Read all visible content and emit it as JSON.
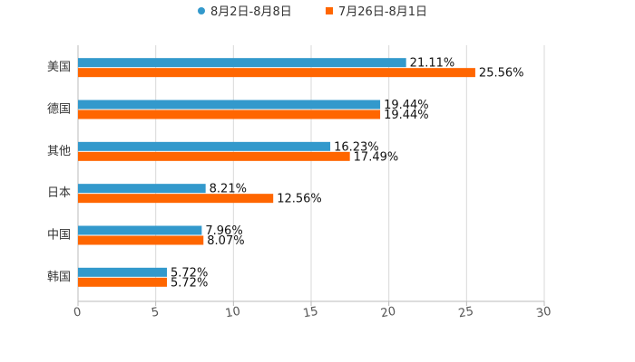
{
  "chart_data": {
    "type": "bar",
    "orientation": "horizontal",
    "categories": [
      "美国",
      "德国",
      "其他",
      "日本",
      "中国",
      "韩国"
    ],
    "series": [
      {
        "name": "8月2日-8月8日",
        "color": "#3399cc",
        "values": [
          21.11,
          19.44,
          16.23,
          8.21,
          7.96,
          5.72
        ],
        "labels": [
          "21.11%",
          "19.44%",
          "16.23%",
          "8.21%",
          "7.96%",
          "5.72%"
        ]
      },
      {
        "name": "7月26日-8月1日",
        "color": "#ff6600",
        "values": [
          25.56,
          19.44,
          17.49,
          12.56,
          8.07,
          5.72
        ],
        "labels": [
          "25.56%",
          "19.44%",
          "17.49%",
          "12.56%",
          "8.07%",
          "5.72%"
        ]
      }
    ],
    "xlim": [
      0,
      30
    ],
    "xticks": [
      0,
      5,
      10,
      15,
      20,
      25,
      30
    ],
    "xtick_labels": [
      "0",
      "5",
      "10",
      "15",
      "20",
      "25",
      "30"
    ],
    "grid": true,
    "legend_position": "top-center"
  }
}
